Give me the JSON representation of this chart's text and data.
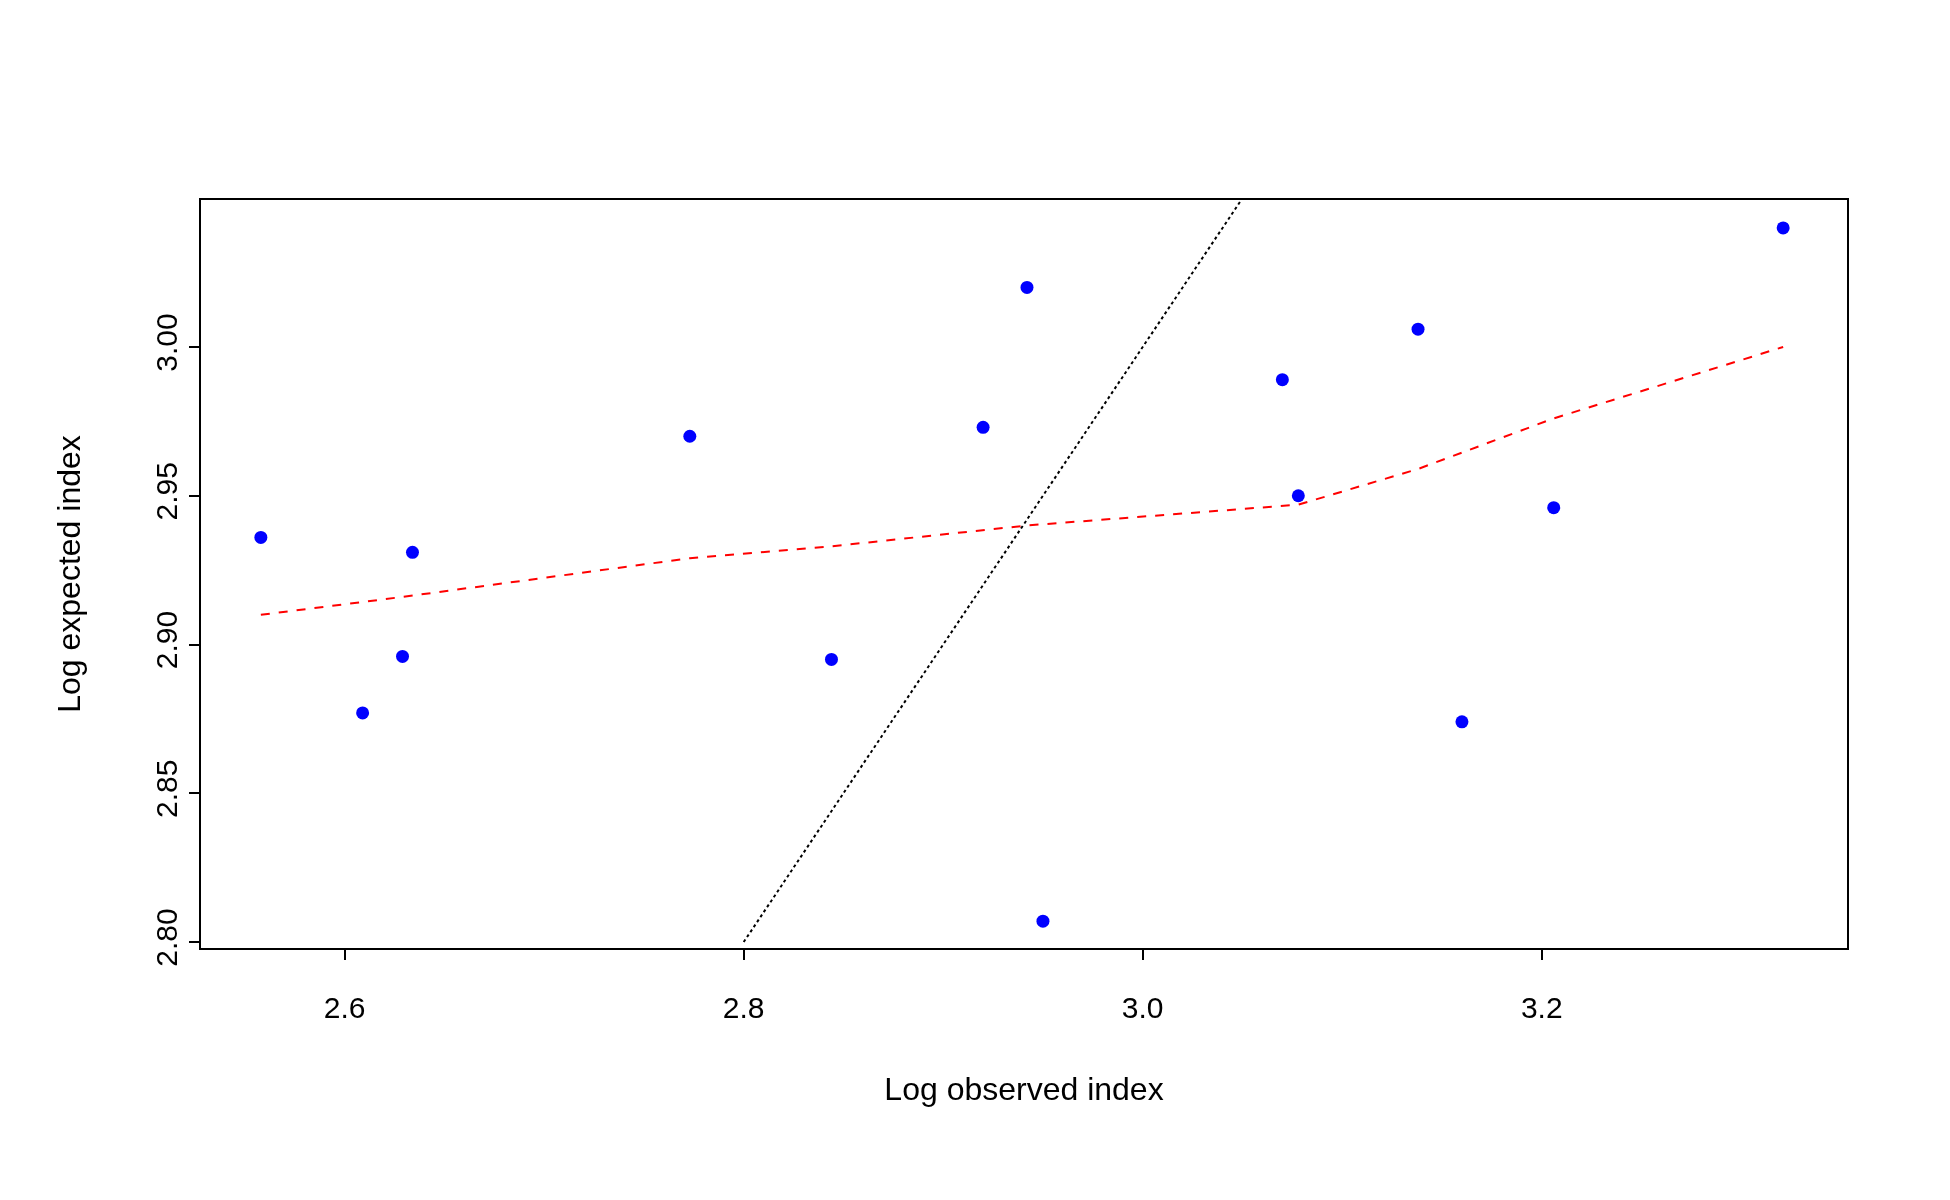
{
  "chart_data": {
    "type": "scatter",
    "xlabel": "Log observed index",
    "ylabel": "Log expected index",
    "xlim": [
      2.528,
      3.353
    ],
    "ylim": [
      2.798,
      3.0494
    ],
    "xticks": [
      2.6,
      2.8,
      {
        "value": 3.0,
        "label": "3.0"
      },
      3.2
    ],
    "yticks": [
      {
        "value": 2.8,
        "label": "2.80"
      },
      2.85,
      {
        "value": 2.9,
        "label": "2.90"
      },
      2.95,
      {
        "value": 3.0,
        "label": "3.00"
      }
    ],
    "series": [
      {
        "marker": "circle",
        "color": "#0000ff",
        "x": [
          2.558,
          2.609,
          2.629,
          2.634,
          2.773,
          2.844,
          2.92,
          2.942,
          2.95,
          3.07,
          3.078,
          3.138,
          3.16,
          3.206,
          3.321
        ],
        "values": [
          2.936,
          2.877,
          2.896,
          2.931,
          2.97,
          2.895,
          2.973,
          3.02,
          2.807,
          2.989,
          2.95,
          3.006,
          2.874,
          2.946,
          3.04
        ]
      },
      {
        "type": "line",
        "marker": "none",
        "line_style": "dashed",
        "color": "#ff0000",
        "x": [
          2.558,
          2.629,
          2.773,
          2.844,
          2.942,
          3.078,
          3.138,
          3.206,
          3.321
        ],
        "values": [
          2.91,
          2.916,
          2.929,
          2.933,
          2.94,
          2.947,
          2.959,
          2.976,
          3.0
        ]
      },
      {
        "type": "line",
        "marker": "none",
        "line_style": "dotted",
        "color": "#000000",
        "x": [
          2.8,
          3.049
        ],
        "values": [
          2.8,
          3.049
        ]
      }
    ]
  }
}
